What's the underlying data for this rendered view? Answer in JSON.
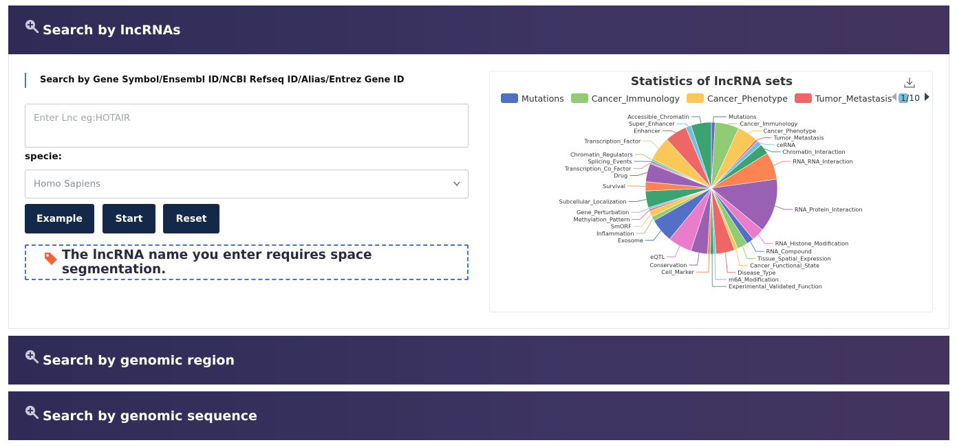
{
  "panels": {
    "lncrna_title": "Search by lncRNAs",
    "region_title": "Search by genomic region",
    "sequence_title": "Search by genomic sequence"
  },
  "form": {
    "search_label": "Search by Gene Symbol/Ensembl ID/NCBI Refseq ID/Alias/Entrez Gene ID",
    "input_placeholder": "Enter Lnc eg:HOTAIR",
    "input_value": "",
    "specie_label": "specie:",
    "specie_selected": "Homo Sapiens",
    "example_label": "Example",
    "start_label": "Start",
    "reset_label": "Reset",
    "notice": "The lncRNA name you enter requires space segmentation."
  },
  "icons": {
    "panel_icon": "zoom-in-icon",
    "notice_icon": "tag-icon",
    "download_icon": "download-icon",
    "select_icon": "chevron-down-icon"
  },
  "colors": {
    "header": "#3a325e",
    "button": "#14284a",
    "accent": "#4d6fd0"
  },
  "legend": {
    "items": [
      {
        "name": "Mutations",
        "color": "#5070c4"
      },
      {
        "name": "Cancer_Immunology",
        "color": "#91cc75"
      },
      {
        "name": "Cancer_Phenotype",
        "color": "#fac858"
      },
      {
        "name": "Tumor_Metastasis",
        "color": "#ee6666"
      }
    ],
    "partial_color": "#73c0de",
    "page": "1/10"
  },
  "chart_data": {
    "type": "pie",
    "title": "Statistics of lncRNA sets",
    "legend_position": "top",
    "slices": [
      {
        "label": "Mutations",
        "value": 1.0,
        "color": "#5470c6"
      },
      {
        "label": "Cancer_Immunology",
        "value": 6.5,
        "color": "#91cc75"
      },
      {
        "label": "Cancer_Phenotype",
        "value": 5.5,
        "color": "#fac858"
      },
      {
        "label": "Tumor_Metastasis",
        "value": 0.6,
        "color": "#ee6666"
      },
      {
        "label": "ceRNA",
        "value": 1.4,
        "color": "#73c0de"
      },
      {
        "label": "Chromatin_Interaction",
        "value": 2.8,
        "color": "#3ba272"
      },
      {
        "label": "RNA_RNA_Interaction",
        "value": 7.4,
        "color": "#fc8452"
      },
      {
        "label": "RNA_Protein_Interaction",
        "value": 14.5,
        "color": "#9a60b4"
      },
      {
        "label": "RNA_Histone_Modification",
        "value": 3.5,
        "color": "#ea7ccc"
      },
      {
        "label": "RNA_Compound",
        "value": 2.0,
        "color": "#5470c6"
      },
      {
        "label": "Tissue_Spatial_Expression",
        "value": 2.8,
        "color": "#91cc75"
      },
      {
        "label": "Cancer_Functional_State",
        "value": 1.0,
        "color": "#fac858"
      },
      {
        "label": "Disease_Type",
        "value": 5.0,
        "color": "#ee6666"
      },
      {
        "label": "m6A_Modification",
        "value": 0.6,
        "color": "#73c0de"
      },
      {
        "label": "Experimental_Validated_Function",
        "value": 0.9,
        "color": "#3ba272"
      },
      {
        "label": "Cell_Marker",
        "value": 0.8,
        "color": "#fc8452"
      },
      {
        "label": "Conservation",
        "value": 4.5,
        "color": "#9a60b4"
      },
      {
        "label": "eQTL",
        "value": 6.5,
        "color": "#ea7ccc"
      },
      {
        "label": "Exosome",
        "value": 6.5,
        "color": "#5470c6"
      },
      {
        "label": "Inflammation",
        "value": 1.2,
        "color": "#91cc75"
      },
      {
        "label": "SmORF",
        "value": 1.6,
        "color": "#fac858"
      },
      {
        "label": "Methylation_Pattern",
        "value": 0.5,
        "color": "#ee6666"
      },
      {
        "label": "Gene_Perturbation",
        "value": 0.5,
        "color": "#73c0de"
      },
      {
        "label": "Subcellular_Localization",
        "value": 4.5,
        "color": "#3ba272"
      },
      {
        "label": "Survival",
        "value": 2.5,
        "color": "#fc8452"
      },
      {
        "label": "Drug",
        "value": 5.0,
        "color": "#9a60b4"
      },
      {
        "label": "Transcription_Co_Factor",
        "value": 0.4,
        "color": "#ea7ccc"
      },
      {
        "label": "Splicing_Events",
        "value": 0.4,
        "color": "#5470c6"
      },
      {
        "label": "Chromatin_Regulators",
        "value": 0.6,
        "color": "#91cc75"
      },
      {
        "label": "Transcription_Factor",
        "value": 6.5,
        "color": "#fac858"
      },
      {
        "label": "Enhancer",
        "value": 6.0,
        "color": "#ee6666"
      },
      {
        "label": "Super_Enhancer",
        "value": 1.5,
        "color": "#73c0de"
      },
      {
        "label": "Accessible_Chromatin",
        "value": 5.5,
        "color": "#3ba272"
      }
    ]
  }
}
